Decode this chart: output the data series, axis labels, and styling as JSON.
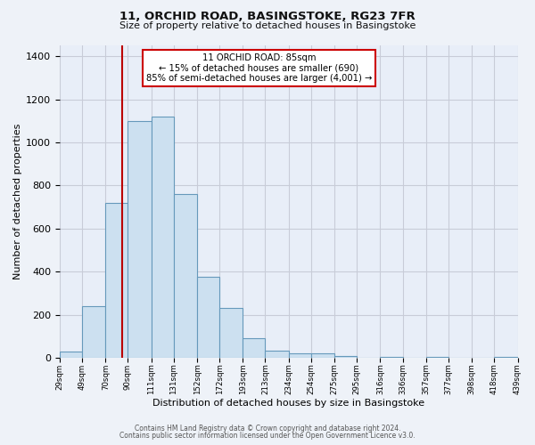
{
  "title": "11, ORCHID ROAD, BASINGSTOKE, RG23 7FR",
  "subtitle": "Size of property relative to detached houses in Basingstoke",
  "xlabel": "Distribution of detached houses by size in Basingstoke",
  "ylabel": "Number of detached properties",
  "bar_edges": [
    29,
    49,
    70,
    90,
    111,
    131,
    152,
    172,
    193,
    213,
    234,
    254,
    275,
    295,
    316,
    336,
    357,
    377,
    398,
    418,
    439
  ],
  "bar_heights": [
    30,
    240,
    720,
    1100,
    1120,
    760,
    375,
    230,
    90,
    35,
    20,
    20,
    10,
    0,
    5,
    0,
    5,
    0,
    0,
    5
  ],
  "bar_color": "#cce0f0",
  "bar_edgecolor": "#6699bb",
  "vline_x": 85,
  "vline_color": "#bb0000",
  "annotation_text_line1": "11 ORCHID ROAD: 85sqm",
  "annotation_text_line2": "← 15% of detached houses are smaller (690)",
  "annotation_text_line3": "85% of semi-detached houses are larger (4,001) →",
  "annotation_box_color": "#cc0000",
  "tick_labels": [
    "29sqm",
    "49sqm",
    "70sqm",
    "90sqm",
    "111sqm",
    "131sqm",
    "152sqm",
    "172sqm",
    "193sqm",
    "213sqm",
    "234sqm",
    "254sqm",
    "275sqm",
    "295sqm",
    "316sqm",
    "336sqm",
    "357sqm",
    "377sqm",
    "398sqm",
    "418sqm",
    "439sqm"
  ],
  "ylim": [
    0,
    1450
  ],
  "yticks": [
    0,
    200,
    400,
    600,
    800,
    1000,
    1200,
    1400
  ],
  "footer1": "Contains HM Land Registry data © Crown copyright and database right 2024.",
  "footer2": "Contains public sector information licensed under the Open Government Licence v3.0.",
  "bg_color": "#eef2f8",
  "plot_bg_color": "#e8eef8",
  "grid_color": "#c8ccd8"
}
